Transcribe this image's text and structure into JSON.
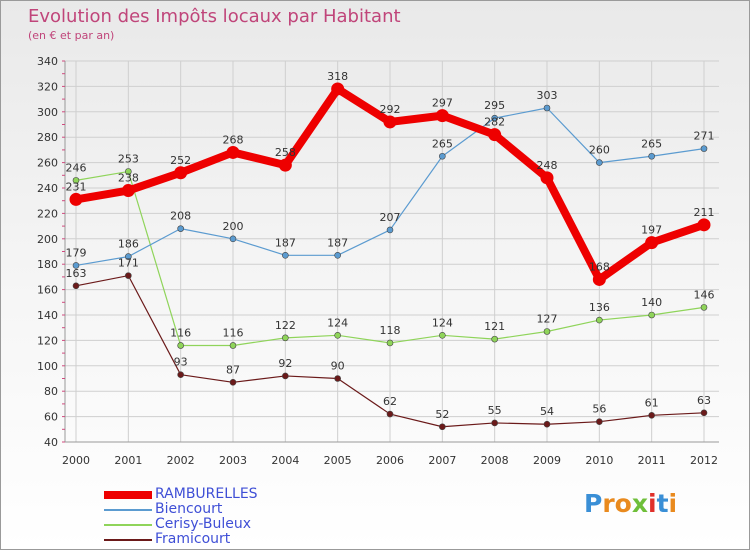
{
  "header": {
    "title": "Evolution des Impôts locaux par Habitant",
    "subtitle": "(en € et par an)"
  },
  "chart_data": {
    "type": "line",
    "title": "Evolution des Impôts locaux par Habitant",
    "subtitle": "(en € et par an)",
    "xlabel": "",
    "ylabel": "",
    "categories": [
      "2000",
      "2001",
      "2002",
      "2003",
      "2004",
      "2005",
      "2006",
      "2007",
      "2008",
      "2009",
      "2010",
      "2011",
      "2012"
    ],
    "ylim": [
      40,
      340
    ],
    "yticks": [
      40,
      60,
      80,
      100,
      120,
      140,
      160,
      180,
      200,
      220,
      240,
      260,
      280,
      300,
      320,
      340
    ],
    "grid": true,
    "legend": "bottom-left",
    "series": [
      {
        "name": "RAMBURELLES",
        "color": "#ee0000",
        "values": [
          231,
          238,
          252,
          268,
          258,
          318,
          292,
          297,
          282,
          248,
          168,
          197,
          211
        ]
      },
      {
        "name": "Biencourt",
        "color": "#5b9bd0",
        "values": [
          179,
          186,
          208,
          200,
          187,
          187,
          207,
          265,
          295,
          303,
          260,
          265,
          271
        ]
      },
      {
        "name": "Cerisy-Buleux",
        "color": "#8fd45a",
        "values": [
          246,
          253,
          116,
          116,
          122,
          124,
          118,
          124,
          121,
          127,
          136,
          140,
          146
        ]
      },
      {
        "name": "Framicourt",
        "color": "#6b1a1a",
        "values": [
          163,
          171,
          93,
          87,
          92,
          90,
          62,
          52,
          55,
          54,
          56,
          61,
          63
        ]
      }
    ]
  },
  "logo": {
    "letters": [
      "P",
      "r",
      "o",
      "x",
      "i",
      "t",
      "i"
    ],
    "colors": [
      "#3a8fd6",
      "#e98a1e",
      "#e98a1e",
      "#6fbf3a",
      "#e0302a",
      "#3a8fd6",
      "#e98a1e"
    ]
  }
}
